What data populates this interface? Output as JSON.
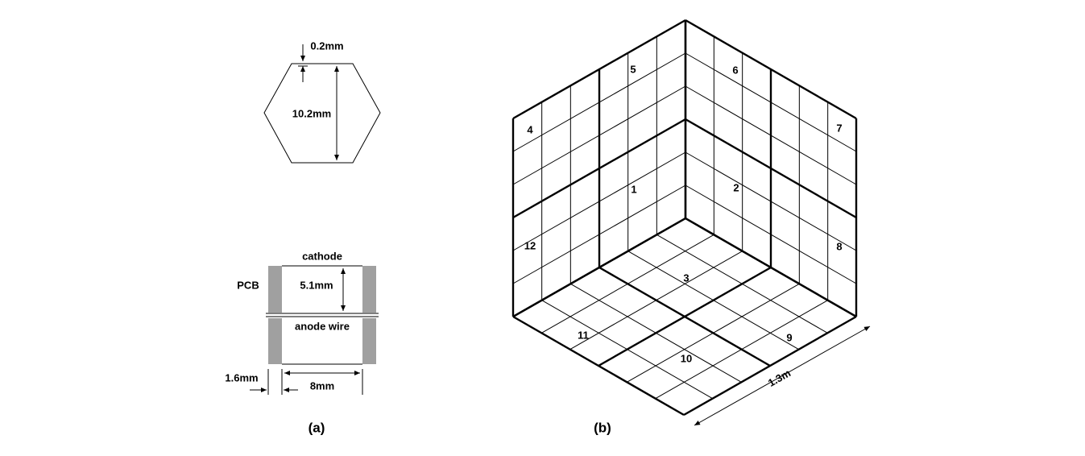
{
  "panel_a": {
    "hexagon": {
      "gap_label": "0.2mm",
      "height_label": "10.2mm"
    },
    "cell": {
      "cathode_label": "cathode",
      "pcb_label": "PCB",
      "gap_label": "5.1mm",
      "anode_label": "anode wire",
      "pcb_thickness_label": "1.6mm",
      "width_label": "8mm"
    },
    "caption": "(a)"
  },
  "panel_b": {
    "modules": [
      {
        "label": "1"
      },
      {
        "label": "2"
      },
      {
        "label": "3"
      },
      {
        "label": "4"
      },
      {
        "label": "5"
      },
      {
        "label": "6"
      },
      {
        "label": "7"
      },
      {
        "label": "8"
      },
      {
        "label": "9"
      },
      {
        "label": "10"
      },
      {
        "label": "11"
      },
      {
        "label": "12"
      }
    ],
    "size_label": "1.3m",
    "caption": "(b)"
  }
}
